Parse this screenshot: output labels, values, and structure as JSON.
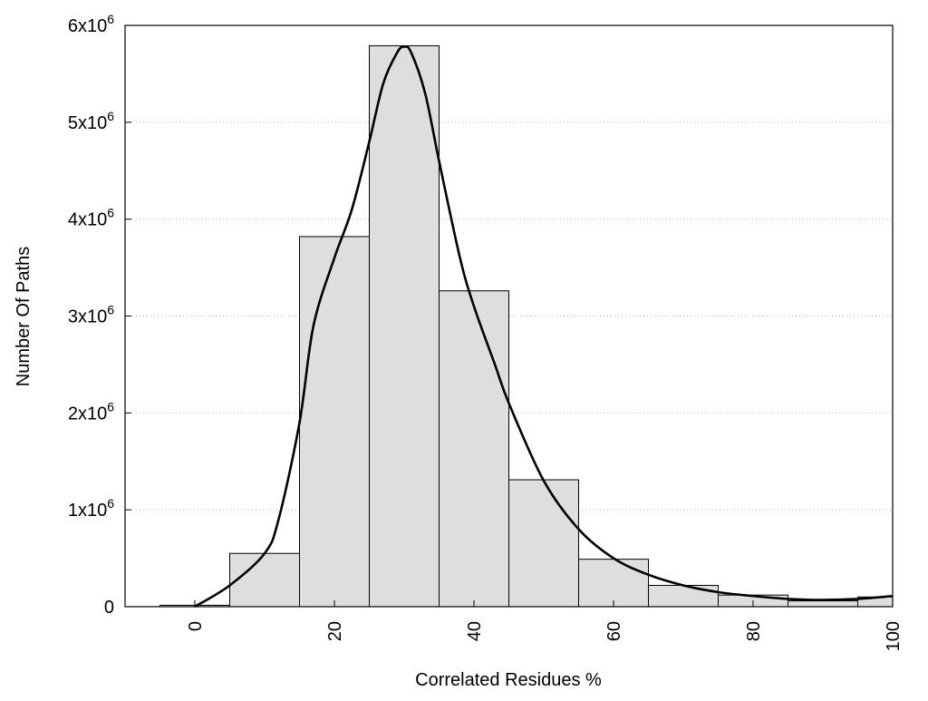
{
  "chart_data": {
    "type": "bar",
    "title": "",
    "xlabel": "Correlated Residues %",
    "ylabel": "Number Of Paths",
    "xlim": [
      -10,
      100
    ],
    "ylim": [
      0,
      6000000
    ],
    "grid": {
      "y": true,
      "x": false,
      "style": "dotted"
    },
    "x_ticks": [
      0,
      20,
      40,
      60,
      80,
      100
    ],
    "x_tick_labels": [
      "0",
      "20",
      "40",
      "60",
      "80",
      "100"
    ],
    "y_ticks": [
      0,
      1000000,
      2000000,
      3000000,
      4000000,
      5000000,
      6000000
    ],
    "y_tick_labels": [
      {
        "base": "0",
        "exp": ""
      },
      {
        "base": "1x10",
        "exp": "6"
      },
      {
        "base": "2x10",
        "exp": "6"
      },
      {
        "base": "3x10",
        "exp": "6"
      },
      {
        "base": "4x10",
        "exp": "6"
      },
      {
        "base": "5x10",
        "exp": "6"
      },
      {
        "base": "6x10",
        "exp": "6"
      }
    ],
    "bin_width": 10,
    "categories": [
      0,
      10,
      20,
      30,
      40,
      50,
      60,
      70,
      80,
      90,
      100
    ],
    "values": [
      15000,
      550000,
      3820000,
      5790000,
      3260000,
      1310000,
      490000,
      220000,
      120000,
      60000,
      100000
    ],
    "bar_color": "#dedede",
    "curve": {
      "x": [
        0,
        5,
        10,
        12,
        15,
        17,
        20,
        22.5,
        25,
        27,
        29,
        30,
        31,
        33,
        35,
        38,
        40,
        43,
        45,
        50,
        55,
        60,
        65,
        70,
        75,
        80,
        85,
        90,
        95,
        100
      ],
      "y": [
        0,
        220000,
        550000,
        900000,
        1900000,
        2900000,
        3600000,
        4100000,
        4800000,
        5400000,
        5720000,
        5780000,
        5720000,
        5300000,
        4600000,
        3600000,
        3100000,
        2500000,
        2100000,
        1300000,
        800000,
        500000,
        330000,
        220000,
        150000,
        110000,
        80000,
        70000,
        80000,
        110000
      ],
      "color": "#000000"
    }
  }
}
